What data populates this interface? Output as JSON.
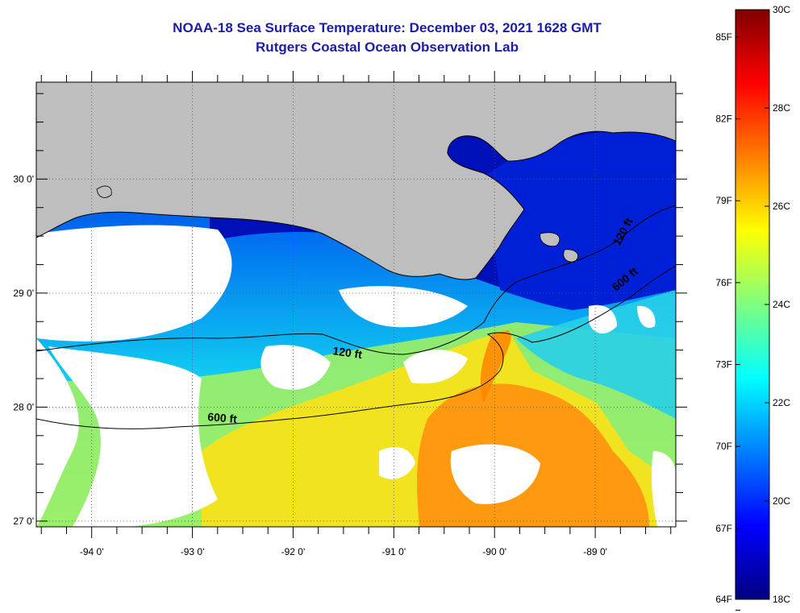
{
  "title": {
    "line1": "NOAA-18 Sea Surface Temperature:  December 03, 2021 1628 GMT",
    "line2": "Rutgers Coastal Ocean Observation Lab"
  },
  "map": {
    "lon_range": [
      -94.55,
      -88.2
    ],
    "lat_range": [
      26.95,
      30.85
    ],
    "lon_ticks": [
      {
        "value": -94,
        "label": "-94 0'"
      },
      {
        "value": -93,
        "label": "-93 0'"
      },
      {
        "value": -92,
        "label": "-92 0'"
      },
      {
        "value": -91,
        "label": "-91 0'"
      },
      {
        "value": -90,
        "label": "-90 0'"
      },
      {
        "value": -89,
        "label": "-89 0'"
      }
    ],
    "lat_ticks": [
      {
        "value": 30,
        "label": "30 0'"
      },
      {
        "value": 29,
        "label": "29 0'"
      },
      {
        "value": 28,
        "label": "28 0'"
      },
      {
        "value": 27,
        "label": "27 0'"
      }
    ],
    "contour_labels": {
      "c120_west": "120 ft",
      "c600_west": "600 ft",
      "c120_east": "120 ft",
      "c600_east": "600 ft"
    },
    "colors": {
      "land": "#bebebe",
      "cloud": "#ffffff"
    }
  },
  "colorbar": {
    "temp_min_c": 18,
    "temp_max_c": 30,
    "celsius_labels": [
      {
        "value": 30,
        "label": "30C"
      },
      {
        "value": 28,
        "label": "28C"
      },
      {
        "value": 26,
        "label": "26C"
      },
      {
        "value": 24,
        "label": "24C"
      },
      {
        "value": 22,
        "label": "22C"
      },
      {
        "value": 20,
        "label": "20C"
      },
      {
        "value": 18,
        "label": "18C"
      }
    ],
    "fahrenheit_labels": [
      {
        "value": 85,
        "label": "85F"
      },
      {
        "value": 82,
        "label": "82F"
      },
      {
        "value": 79,
        "label": "79F"
      },
      {
        "value": 76,
        "label": "76F"
      },
      {
        "value": 73,
        "label": "73F"
      },
      {
        "value": 70,
        "label": "70F"
      },
      {
        "value": 67,
        "label": "67F"
      },
      {
        "value": 64,
        "label": "64F"
      }
    ],
    "colors": [
      "#00007f",
      "#0000ff",
      "#007fff",
      "#00ffff",
      "#7fff7f",
      "#ffff00",
      "#ff7f00",
      "#ff0000",
      "#7f0000"
    ]
  }
}
